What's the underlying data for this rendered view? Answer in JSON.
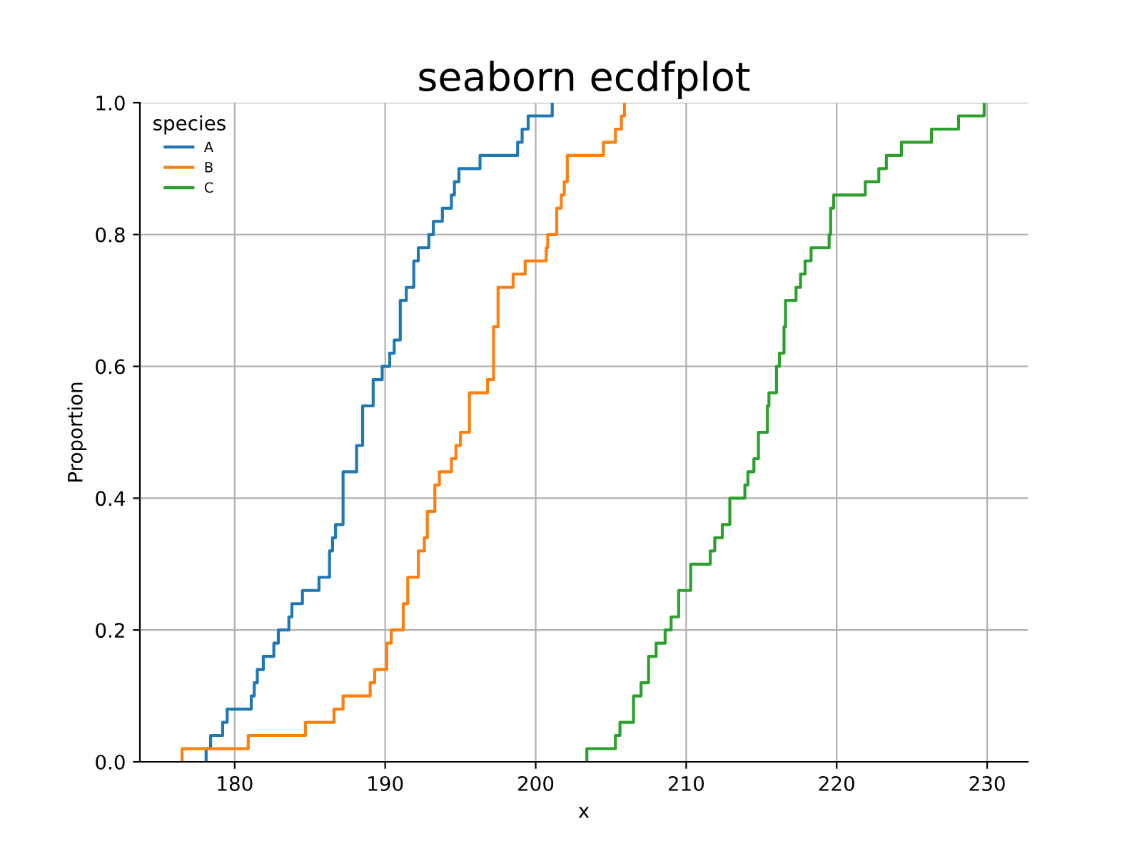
{
  "chart_data": {
    "type": "step",
    "title": "seaborn ecdfplot",
    "xlabel": "x",
    "ylabel": "Proportion",
    "legend_title": "species",
    "legend": "top left",
    "grid": true,
    "xlim": [
      173.7,
      232.7
    ],
    "ylim": [
      0,
      1
    ],
    "xticks": [
      180,
      190,
      200,
      210,
      220,
      230
    ],
    "yticks": [
      {
        "value": 0,
        "label": "0.0"
      },
      {
        "value": 0.2,
        "label": "0.2"
      },
      {
        "value": 0.4,
        "label": "0.4"
      },
      {
        "value": 0.6,
        "label": "0.6"
      },
      {
        "value": 0.8,
        "label": "0.8"
      },
      {
        "value": 1,
        "label": "1.0"
      }
    ],
    "series": [
      {
        "name": "A",
        "color": "#1f77b4",
        "x": [
          178.1,
          178.1,
          178.4,
          179.2,
          179.5,
          181.1,
          181.3,
          181.5,
          181.9,
          182.6,
          182.9,
          183.6,
          183.8,
          184.5,
          185.6,
          186.3,
          186.5,
          186.7,
          187.2,
          188.1,
          188.5,
          189.2,
          189.8,
          190.3,
          190.6,
          191.0,
          191.4,
          191.9,
          192.2,
          192.9,
          193.2,
          193.8,
          194.4,
          194.6,
          194.9,
          196.3,
          198.8,
          199.1,
          199.5,
          201.1
        ],
        "values": [
          0,
          0.02,
          0.04,
          0.06,
          0.08,
          0.1,
          0.12,
          0.14,
          0.16,
          0.18,
          0.2,
          0.22,
          0.24,
          0.26,
          0.28,
          0.32,
          0.34,
          0.36,
          0.44,
          0.48,
          0.54,
          0.58,
          0.6,
          0.62,
          0.64,
          0.7,
          0.72,
          0.76,
          0.78,
          0.8,
          0.82,
          0.84,
          0.86,
          0.88,
          0.9,
          0.92,
          0.94,
          0.96,
          0.98,
          1.0
        ]
      },
      {
        "name": "B",
        "color": "#ff7f0e",
        "x": [
          176.5,
          176.5,
          180.9,
          184.7,
          186.6,
          187.2,
          189.0,
          189.3,
          190.1,
          190.4,
          191.2,
          191.5,
          192.2,
          192.6,
          192.8,
          193.3,
          193.6,
          194.4,
          194.7,
          195.0,
          195.6,
          196.8,
          197.2,
          197.2,
          197.5,
          198.5,
          199.3,
          200.7,
          200.8,
          201.4,
          201.7,
          201.9,
          202.1,
          204.5,
          205.3,
          205.7,
          205.9
        ],
        "values": [
          0,
          0.02,
          0.04,
          0.06,
          0.08,
          0.1,
          0.12,
          0.14,
          0.18,
          0.2,
          0.24,
          0.28,
          0.32,
          0.34,
          0.38,
          0.42,
          0.44,
          0.46,
          0.48,
          0.5,
          0.56,
          0.58,
          0.6,
          0.66,
          0.72,
          0.74,
          0.76,
          0.78,
          0.8,
          0.84,
          0.86,
          0.88,
          0.92,
          0.94,
          0.96,
          0.98,
          1.0
        ]
      },
      {
        "name": "C",
        "color": "#2ca02c",
        "x": [
          203.4,
          203.4,
          205.3,
          205.6,
          206.5,
          207.0,
          207.5,
          208.0,
          208.6,
          209.0,
          209.5,
          210.3,
          211.6,
          211.9,
          212.4,
          212.9,
          213.9,
          214.1,
          214.5,
          214.8,
          215.4,
          215.5,
          216.0,
          216.2,
          216.5,
          216.6,
          217.3,
          217.6,
          217.9,
          218.3,
          219.5,
          219.6,
          219.8,
          221.9,
          222.8,
          223.3,
          224.3,
          226.3,
          228.1,
          229.8
        ],
        "values": [
          0,
          0.02,
          0.04,
          0.06,
          0.1,
          0.12,
          0.16,
          0.18,
          0.2,
          0.22,
          0.26,
          0.3,
          0.32,
          0.34,
          0.36,
          0.4,
          0.42,
          0.44,
          0.46,
          0.5,
          0.54,
          0.56,
          0.6,
          0.62,
          0.66,
          0.7,
          0.72,
          0.74,
          0.76,
          0.78,
          0.8,
          0.84,
          0.86,
          0.88,
          0.9,
          0.92,
          0.94,
          0.96,
          0.98,
          1.0
        ]
      }
    ]
  }
}
